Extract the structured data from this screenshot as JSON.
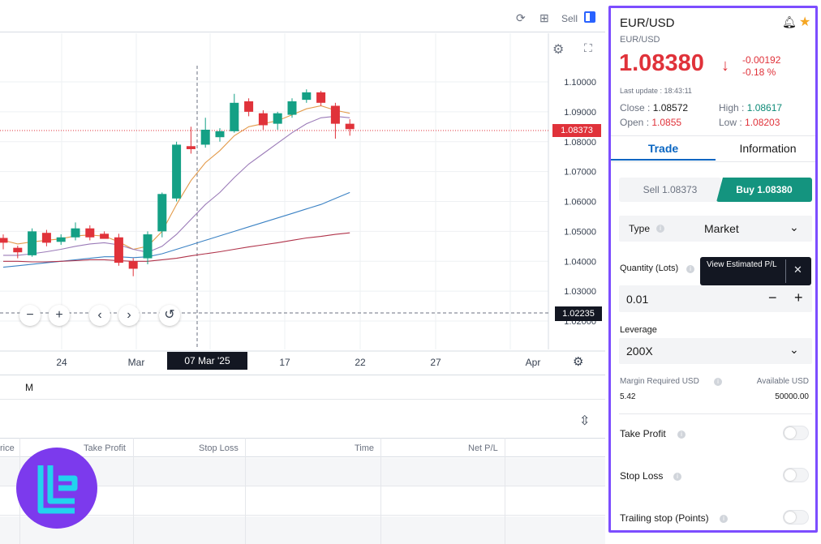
{
  "toolbar": {
    "sell_label": "Sell"
  },
  "chart": {
    "price_ticks": [
      "1.10000",
      "1.09000",
      "1.08000",
      "1.07000",
      "1.06000",
      "1.05000",
      "1.04000",
      "1.03000",
      "1.02000"
    ],
    "date_ticks": [
      "24",
      "Mar",
      "17",
      "22",
      "27",
      "Apr"
    ],
    "crosshair_date": "07 Mar '25",
    "current_price_label": "1.08373",
    "crosshair_price_label": "1.02235",
    "interval_label": "M",
    "colors": {
      "up": "#14a085",
      "down": "#e0323a",
      "ma_orange": "#e39b4b",
      "ma_purple": "#9b7bb8",
      "ma_blue": "#3b82c4",
      "ma_red": "#b0334a"
    }
  },
  "chart_data": {
    "type": "candlestick",
    "ylim": [
      1.02,
      1.105
    ],
    "candles": [
      {
        "o": 1.0478,
        "h": 1.049,
        "l": 1.044,
        "c": 1.0462
      },
      {
        "o": 1.0445,
        "h": 1.0452,
        "l": 1.041,
        "c": 1.043
      },
      {
        "o": 1.042,
        "h": 1.051,
        "l": 1.0415,
        "c": 1.05
      },
      {
        "o": 1.0495,
        "h": 1.0505,
        "l": 1.045,
        "c": 1.0462
      },
      {
        "o": 1.0465,
        "h": 1.049,
        "l": 1.0455,
        "c": 1.048
      },
      {
        "o": 1.048,
        "h": 1.053,
        "l": 1.047,
        "c": 1.051
      },
      {
        "o": 1.051,
        "h": 1.052,
        "l": 1.047,
        "c": 1.048
      },
      {
        "o": 1.0492,
        "h": 1.05,
        "l": 1.048,
        "c": 1.0475
      },
      {
        "o": 1.048,
        "h": 1.0492,
        "l": 1.0385,
        "c": 1.0395
      },
      {
        "o": 1.04,
        "h": 1.041,
        "l": 1.035,
        "c": 1.0375
      },
      {
        "o": 1.041,
        "h": 1.05,
        "l": 1.039,
        "c": 1.049
      },
      {
        "o": 1.05,
        "h": 1.063,
        "l": 1.048,
        "c": 1.0625
      },
      {
        "o": 1.061,
        "h": 1.08,
        "l": 1.06,
        "c": 1.079
      },
      {
        "o": 1.0785,
        "h": 1.085,
        "l": 1.076,
        "c": 1.0775
      },
      {
        "o": 1.079,
        "h": 1.088,
        "l": 1.078,
        "c": 1.084
      },
      {
        "o": 1.0815,
        "h": 1.0845,
        "l": 1.08,
        "c": 1.0835
      },
      {
        "o": 1.0835,
        "h": 1.096,
        "l": 1.083,
        "c": 1.093
      },
      {
        "o": 1.0935,
        "h": 1.0945,
        "l": 1.0885,
        "c": 1.09
      },
      {
        "o": 1.0895,
        "h": 1.0905,
        "l": 1.084,
        "c": 1.0855
      },
      {
        "o": 1.086,
        "h": 1.09,
        "l": 1.084,
        "c": 1.0895
      },
      {
        "o": 1.089,
        "h": 1.0945,
        "l": 1.088,
        "c": 1.0935
      },
      {
        "o": 1.094,
        "h": 1.0975,
        "l": 1.093,
        "c": 1.0965
      },
      {
        "o": 1.0965,
        "h": 1.097,
        "l": 1.092,
        "c": 1.093
      },
      {
        "o": 1.092,
        "h": 1.093,
        "l": 1.081,
        "c": 1.086
      },
      {
        "o": 1.086,
        "h": 1.0875,
        "l": 1.082,
        "c": 1.0842
      }
    ],
    "moving_averages": [
      {
        "color": "ma_orange",
        "values": [
          1.047,
          1.0458,
          1.0465,
          1.047,
          1.0475,
          1.0485,
          1.0488,
          1.0484,
          1.0465,
          1.044,
          1.045,
          1.05,
          1.059,
          1.067,
          1.073,
          1.077,
          1.082,
          1.085,
          1.086,
          1.087,
          1.089,
          1.091,
          1.092,
          1.0905,
          1.0895
        ]
      },
      {
        "color": "ma_purple",
        "values": [
          1.042,
          1.042,
          1.0425,
          1.0432,
          1.044,
          1.045,
          1.0458,
          1.0462,
          1.0455,
          1.044,
          1.043,
          1.045,
          1.049,
          1.054,
          1.059,
          1.063,
          1.068,
          1.0725,
          1.076,
          1.0795,
          1.083,
          1.086,
          1.088,
          1.0885,
          1.088
        ]
      },
      {
        "color": "ma_blue",
        "values": [
          1.038,
          1.0385,
          1.039,
          1.0395,
          1.04,
          1.0405,
          1.041,
          1.0415,
          1.0415,
          1.0412,
          1.0415,
          1.0425,
          1.044,
          1.0455,
          1.047,
          1.0485,
          1.05,
          1.0515,
          1.053,
          1.0545,
          1.056,
          1.0575,
          1.059,
          1.061,
          1.063
        ]
      },
      {
        "color": "ma_red",
        "values": [
          1.04,
          1.04,
          1.0398,
          1.0398,
          1.04,
          1.0402,
          1.0405,
          1.0405,
          1.0402,
          1.04,
          1.04,
          1.0405,
          1.041,
          1.0418,
          1.0425,
          1.0432,
          1.044,
          1.0448,
          1.0455,
          1.0462,
          1.047,
          1.0478,
          1.0483,
          1.049,
          1.0495
        ]
      }
    ]
  },
  "positions_table": {
    "headers": [
      "rice",
      "Take Profit",
      "Stop Loss",
      "Time",
      "Net P/L"
    ]
  },
  "panel": {
    "symbol": "EUR/USD",
    "subtitle": "EUR/USD",
    "price": "1.08380",
    "change_abs": "-0.00192",
    "change_pct": "-0.18 %",
    "last_update": "Last update : 18:43:11",
    "close_label": "Close : ",
    "close_value": "1.08572",
    "high_label": "High : ",
    "high_value": "1.08617",
    "open_label": "Open : ",
    "open_value": "1.0855",
    "low_label": "Low : ",
    "low_value": "1.08203",
    "tabs": {
      "trade": "Trade",
      "information": "Information"
    },
    "sell_button": "Sell 1.08373",
    "buy_button": "Buy 1.08380",
    "type_label": "Type",
    "type_value": "Market",
    "quantity_label": "Quantity (Lots)",
    "tooltip_text": "View Estimated P/L",
    "quantity_value": "0.01",
    "leverage_label": "Leverage",
    "leverage_value": "200X",
    "margin_label": "Margin Required USD",
    "margin_value": "5.42",
    "available_label": "Available USD",
    "available_value": "50000.00",
    "take_profit": "Take Profit",
    "stop_loss": "Stop Loss",
    "trailing_stop": "Trailing stop (Points)",
    "colors": {
      "accent": "#0a66c2",
      "buy": "#14947f",
      "frame": "#7c4dff"
    }
  }
}
